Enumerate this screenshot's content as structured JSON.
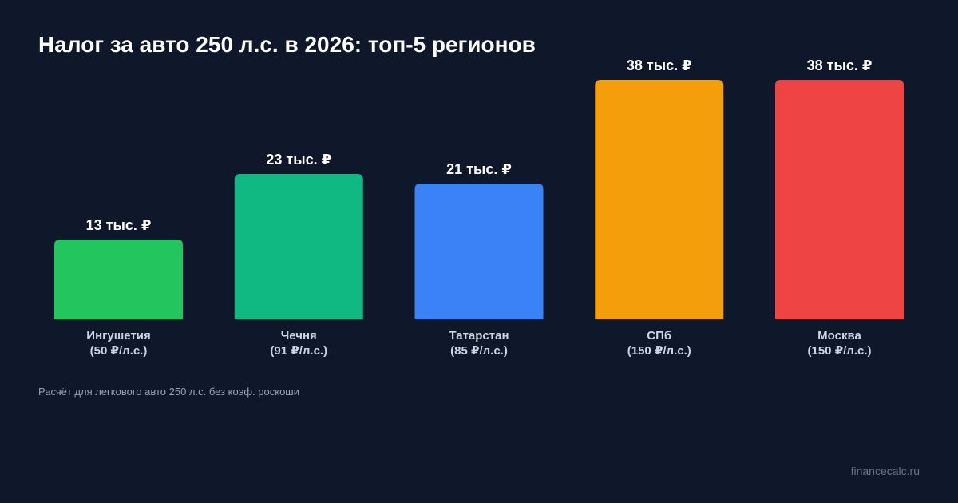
{
  "title": "Налог за авто 250 л.с. в 2026: топ-5 регионов",
  "footnote": "Расчёт для легкового авто 250 л.с. без коэф. роскоши",
  "site": "financecalc.ru",
  "chart_data": {
    "type": "bar",
    "title": "Налог за авто 250 л.с. в 2026: топ-5 регионов",
    "categories": [
      "Ингушетия",
      "Чечня",
      "Татарстан",
      "СПб",
      "Москва"
    ],
    "sublabels": [
      "(50 ₽/л.с.)",
      "(91 ₽/л.с.)",
      "(85 ₽/л.с.)",
      "(150 ₽/л.с.)",
      "(150 ₽/л.с.)"
    ],
    "values": [
      12500,
      22750,
      21250,
      37500,
      37500
    ],
    "value_labels": [
      "13 тыс. ₽",
      "23 тыс. ₽",
      "21 тыс. ₽",
      "38 тыс. ₽",
      "38 тыс. ₽"
    ],
    "colors": [
      "#22c55e",
      "#10b981",
      "#3b82f6",
      "#f59e0b",
      "#ef4444"
    ],
    "unit": "₽",
    "ylim": [
      0,
      37500
    ],
    "grid": false,
    "legend": "none"
  }
}
